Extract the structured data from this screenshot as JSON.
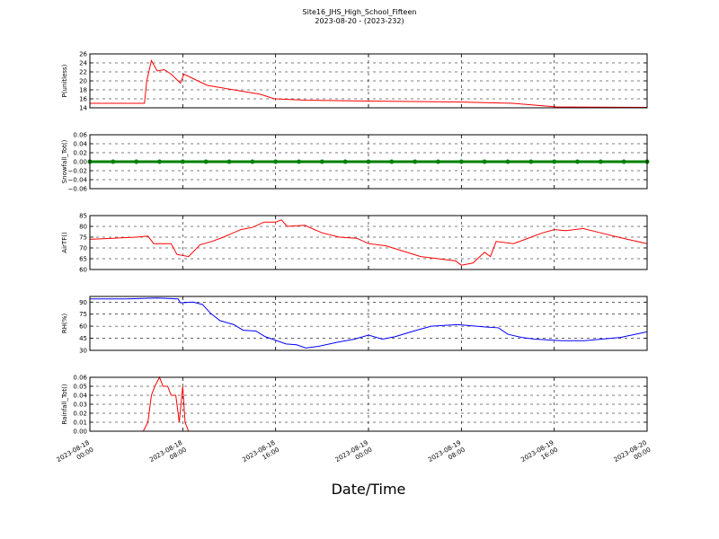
{
  "figure": {
    "title": "Site16_JHS_High_School_Fifteen",
    "subtitle": "2023-08-20 - (2023-232)",
    "xlabel": "Date/Time",
    "xlim": [
      "2023-08-18 00:00",
      "2023-08-20 00:00"
    ],
    "xticks": [
      {
        "value": "2023-08-18 00:00",
        "label": "2023-08-18\n00:00"
      },
      {
        "value": "2023-08-18 08:00",
        "label": "2023-08-18\n08:00"
      },
      {
        "value": "2023-08-18 16:00",
        "label": "2023-08-18\n16:00"
      },
      {
        "value": "2023-08-19 00:00",
        "label": "2023-08-19\n00:00"
      },
      {
        "value": "2023-08-19 08:00",
        "label": "2023-08-19\n08:00"
      },
      {
        "value": "2023-08-19 16:00",
        "label": "2023-08-19\n16:00"
      },
      {
        "value": "2023-08-20 00:00",
        "label": "2023-08-20\n00:00"
      }
    ]
  },
  "chart_data": [
    {
      "type": "line",
      "ylabel": "P(unitless)",
      "color": "#ff0000",
      "ylim": [
        14,
        26
      ],
      "yticks": [
        14,
        16,
        18,
        20,
        22,
        24,
        26
      ],
      "grid": true,
      "x": [
        "2023-08-18 00:00",
        "2023-08-18 04:42",
        "2023-08-18 04:54",
        "2023-08-18 05:18",
        "2023-08-18 05:48",
        "2023-08-18 06:24",
        "2023-08-18 07:00",
        "2023-08-18 07:36",
        "2023-08-18 07:48",
        "2023-08-18 08:06",
        "2023-08-18 08:54",
        "2023-08-18 10:06",
        "2023-08-18 12:24",
        "2023-08-18 14:42",
        "2023-08-18 15:54",
        "2023-08-18 18:36",
        "2023-08-19 00:00",
        "2023-08-19 07:42",
        "2023-08-19 12:24",
        "2023-08-19 16:12",
        "2023-08-20 00:00"
      ],
      "values": [
        15,
        15,
        20,
        24.5,
        22.2,
        22.5,
        21.5,
        20,
        19.5,
        21.5,
        20.5,
        19,
        18,
        17,
        16,
        15.7,
        15.5,
        15.3,
        15,
        14.2,
        14.1
      ]
    },
    {
      "type": "line",
      "ylabel": "Snowfall_Tot()",
      "color": "#008000",
      "marker": "o",
      "ylim": [
        -0.06,
        0.06
      ],
      "yticks": [
        {
          "value": -0.06,
          "label": "−0.06"
        },
        {
          "value": -0.04,
          "label": "−0.04"
        },
        {
          "value": -0.02,
          "label": "−0.02"
        },
        {
          "value": 0,
          "label": "0.00"
        },
        0.02,
        0.04,
        0.06
      ],
      "grid": true,
      "x": [
        "2023-08-18 00:00",
        "2023-08-18 02:00",
        "2023-08-18 04:00",
        "2023-08-18 06:00",
        "2023-08-18 08:00",
        "2023-08-18 10:00",
        "2023-08-18 12:00",
        "2023-08-18 14:00",
        "2023-08-18 16:00",
        "2023-08-18 18:00",
        "2023-08-18 20:00",
        "2023-08-18 22:00",
        "2023-08-19 00:00",
        "2023-08-19 02:00",
        "2023-08-19 04:00",
        "2023-08-19 06:00",
        "2023-08-19 08:00",
        "2023-08-19 10:00",
        "2023-08-19 12:00",
        "2023-08-19 14:00",
        "2023-08-19 16:00",
        "2023-08-19 18:00",
        "2023-08-19 20:00",
        "2023-08-19 22:00",
        "2023-08-20 00:00"
      ],
      "values": [
        0,
        0,
        0,
        0,
        0,
        0,
        0,
        0,
        0,
        0,
        0,
        0,
        0,
        0,
        0,
        0,
        0,
        0,
        0,
        0,
        0,
        0,
        0,
        0,
        0
      ]
    },
    {
      "type": "line",
      "ylabel": "AirTF()",
      "color": "#ff0000",
      "ylim": [
        60,
        85
      ],
      "yticks": [
        60,
        65,
        70,
        75,
        80,
        85
      ],
      "grid": true,
      "x": [
        "2023-08-18 00:00",
        "2023-08-18 02:00",
        "2023-08-18 04:00",
        "2023-08-18 05:00",
        "2023-08-18 05:30",
        "2023-08-18 07:00",
        "2023-08-18 07:30",
        "2023-08-18 08:30",
        "2023-08-18 09:30",
        "2023-08-18 10:30",
        "2023-08-18 11:30",
        "2023-08-18 13:00",
        "2023-08-18 14:00",
        "2023-08-18 15:00",
        "2023-08-18 16:00",
        "2023-08-18 16:30",
        "2023-08-18 17:00",
        "2023-08-18 18:30",
        "2023-08-18 20:00",
        "2023-08-18 21:30",
        "2023-08-18 23:00",
        "2023-08-19 00:00",
        "2023-08-19 01:30",
        "2023-08-19 03:00",
        "2023-08-19 04:30",
        "2023-08-19 06:00",
        "2023-08-19 07:30",
        "2023-08-19 08:00",
        "2023-08-19 09:00",
        "2023-08-19 10:00",
        "2023-08-19 10:30",
        "2023-08-19 11:00",
        "2023-08-19 12:30",
        "2023-08-19 14:00",
        "2023-08-19 15:00",
        "2023-08-19 16:00",
        "2023-08-19 17:00",
        "2023-08-19 18:30",
        "2023-08-19 20:00",
        "2023-08-19 21:30",
        "2023-08-20 00:00"
      ],
      "values": [
        74,
        74.5,
        75,
        75.5,
        72,
        72,
        67,
        66,
        71.5,
        73,
        75,
        78.5,
        79.5,
        82,
        82,
        83,
        80,
        80.5,
        77,
        75,
        74.5,
        72,
        71,
        68.5,
        66,
        65,
        64,
        62,
        63,
        68,
        66,
        73,
        72,
        75,
        77,
        78.5,
        78,
        79,
        77,
        75,
        72
      ]
    },
    {
      "type": "line",
      "ylabel": "RH(%)",
      "color": "#0000ff",
      "ylim": [
        30,
        97
      ],
      "yticks": [
        30,
        45,
        60,
        75,
        90
      ],
      "grid": true,
      "x": [
        "2023-08-18 00:00",
        "2023-08-18 03:06",
        "2023-08-18 05:48",
        "2023-08-18 07:36",
        "2023-08-18 07:48",
        "2023-08-18 08:54",
        "2023-08-18 09:42",
        "2023-08-18 10:24",
        "2023-08-18 11:12",
        "2023-08-18 12:24",
        "2023-08-18 13:12",
        "2023-08-18 14:18",
        "2023-08-18 15:06",
        "2023-08-18 15:54",
        "2023-08-18 16:54",
        "2023-08-18 17:48",
        "2023-08-18 18:36",
        "2023-08-18 19:42",
        "2023-08-18 21:18",
        "2023-08-18 22:48",
        "2023-08-19 00:00",
        "2023-08-19 01:12",
        "2023-08-19 02:18",
        "2023-08-19 03:54",
        "2023-08-19 05:24",
        "2023-08-19 07:42",
        "2023-08-19 10:06",
        "2023-08-19 11:12",
        "2023-08-19 12:00",
        "2023-08-19 13:12",
        "2023-08-19 14:18",
        "2023-08-19 15:30",
        "2023-08-19 16:36",
        "2023-08-19 18:36",
        "2023-08-19 20:06",
        "2023-08-19 21:42",
        "2023-08-20 00:00"
      ],
      "values": [
        94,
        94,
        95,
        94,
        89,
        90,
        87,
        76,
        67,
        62,
        55,
        54,
        47,
        43,
        38,
        37,
        33,
        35,
        40,
        44,
        49,
        44,
        47,
        54,
        60,
        62,
        59,
        58,
        50,
        46,
        44,
        43,
        42,
        42,
        44,
        46,
        53
      ]
    },
    {
      "type": "line",
      "ylabel": "Rainfall_Tot()",
      "color": "#ff0000",
      "ylim": [
        0,
        0.06
      ],
      "yticks": [
        {
          "value": 0,
          "label": "0.00"
        },
        0.01,
        0.02,
        0.03,
        0.04,
        0.05,
        0.06
      ],
      "grid": true,
      "x": [
        "2023-08-18 00:00",
        "2023-08-18 04:36",
        "2023-08-18 05:00",
        "2023-08-18 05:18",
        "2023-08-18 05:36",
        "2023-08-18 06:00",
        "2023-08-18 06:18",
        "2023-08-18 06:42",
        "2023-08-18 07:00",
        "2023-08-18 07:24",
        "2023-08-18 07:42",
        "2023-08-18 08:00",
        "2023-08-18 08:12",
        "2023-08-18 08:30",
        "2023-08-20 00:00"
      ],
      "values": [
        0,
        0,
        0.01,
        0.04,
        0.05,
        0.06,
        0.05,
        0.05,
        0.04,
        0.04,
        0.01,
        0.05,
        0.01,
        0,
        0
      ]
    }
  ]
}
